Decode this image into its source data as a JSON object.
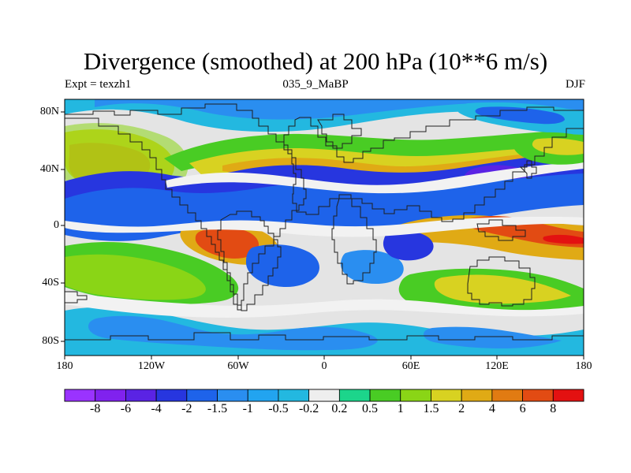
{
  "title": "Divergence (smoothed) at 200 hPa (10**6 m/s)",
  "subtitle": {
    "left": "Expt = texzh1",
    "center": "035_9_MaBP",
    "right": "DJF"
  },
  "axes": {
    "x_ticks": [
      "180",
      "120W",
      "60W",
      "0",
      "60E",
      "120E",
      "180"
    ],
    "y_ticks": [
      "80N",
      "40N",
      "0",
      "40S",
      "80S"
    ]
  },
  "colors": {
    "landfill": "#e4e4e4",
    "outline": "#1f1f1f"
  },
  "colorbar": {
    "colors": [
      "#9a33ff",
      "#8022ee",
      "#5a23e4",
      "#2736df",
      "#1e63ea",
      "#2a8ef0",
      "#22a4f0",
      "#23b8e0",
      "#eeeeee",
      "#1cd58b",
      "#49cc24",
      "#8ad516",
      "#d8d221",
      "#e0aa15",
      "#e17b12",
      "#e24b13",
      "#e31111"
    ],
    "labels": [
      "-8",
      "-6",
      "-4",
      "-2",
      "-1.5",
      "-1",
      "-0.5",
      "-0.2",
      "0.2",
      "0.5",
      "1",
      "1.5",
      "2",
      "4",
      "6",
      "8"
    ]
  }
}
